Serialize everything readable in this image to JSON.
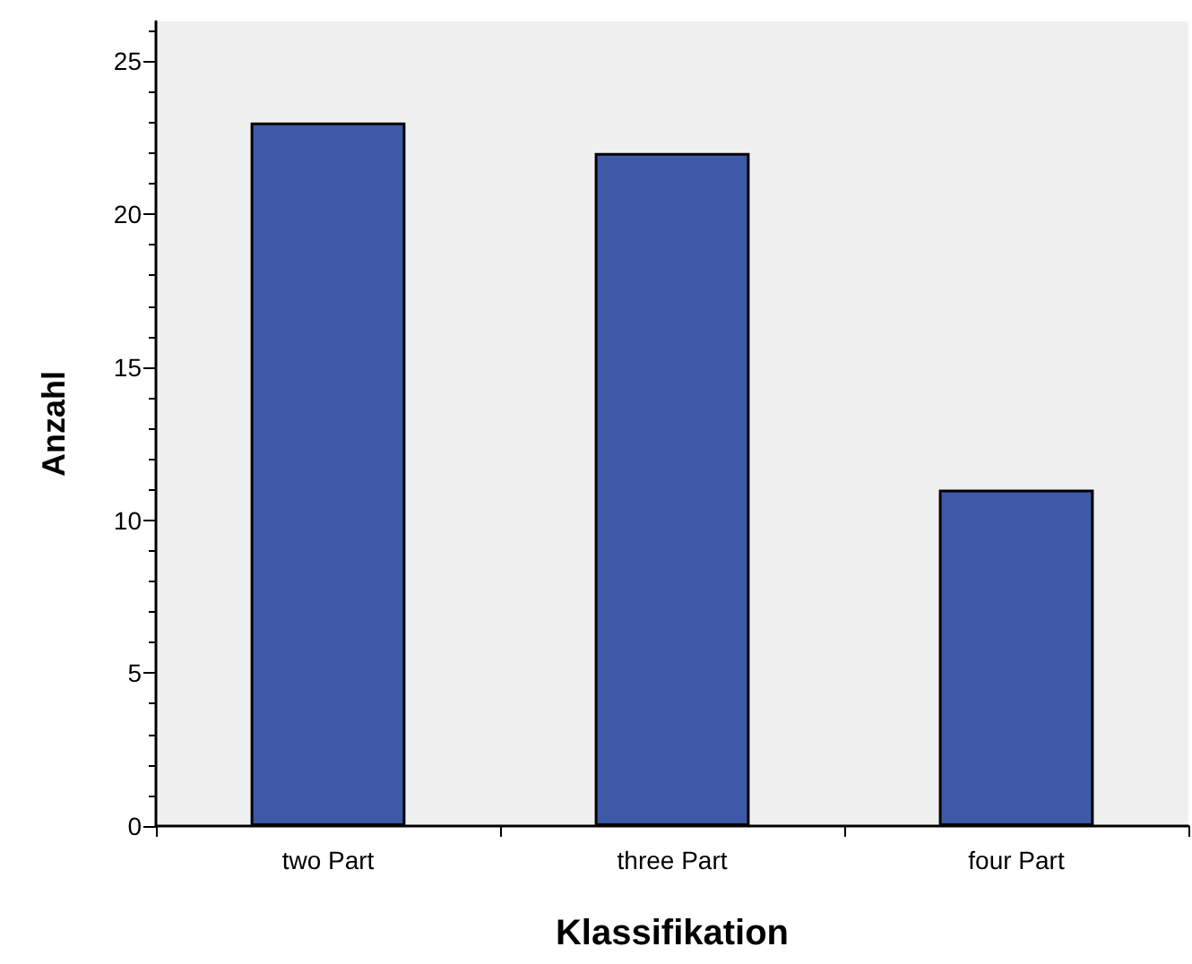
{
  "chart_data": {
    "type": "bar",
    "xlabel": "Klassifikation",
    "ylabel": "Anzahl",
    "categories": [
      "two Part",
      "three Part",
      "four Part"
    ],
    "values": [
      23,
      22,
      11
    ],
    "color": "#3f59a9",
    "ylim": [
      0,
      26.3
    ],
    "yticks": [
      0,
      5,
      10,
      15,
      20,
      25
    ],
    "grid": false
  }
}
